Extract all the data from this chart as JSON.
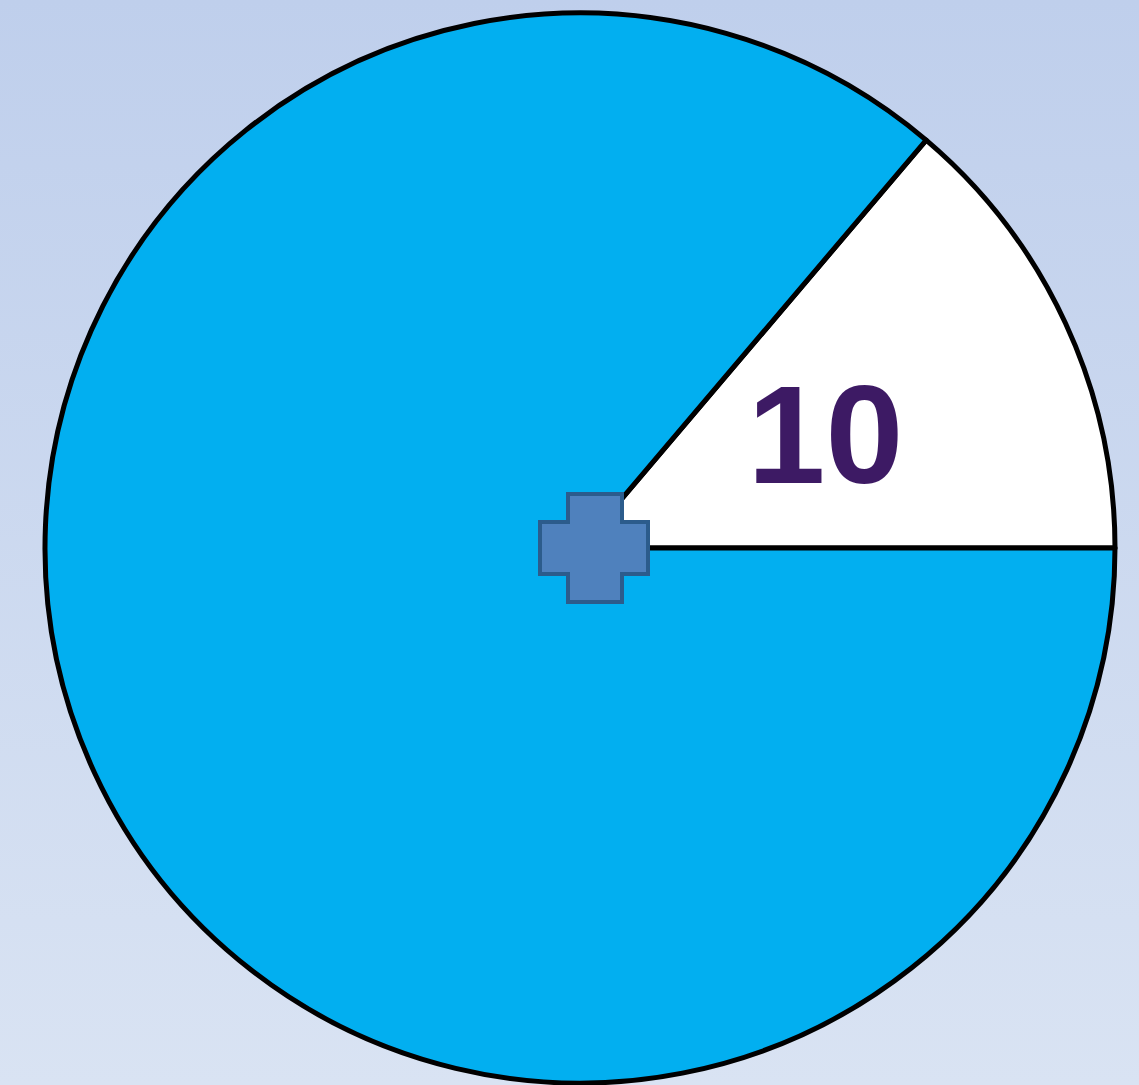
{
  "chart_data": {
    "type": "pie",
    "categories": [
      "10",
      null
    ],
    "values": [
      13.8,
      86.2
    ],
    "colors": [
      "#ffffff",
      "#02aff0"
    ],
    "legend": false
  }
}
